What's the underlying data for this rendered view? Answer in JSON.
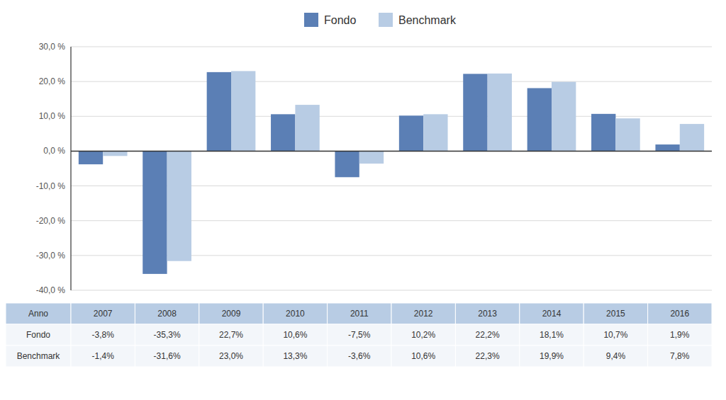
{
  "chart_data": {
    "type": "bar",
    "x_label": "Anno",
    "categories": [
      "2007",
      "2008",
      "2009",
      "2010",
      "2011",
      "2012",
      "2013",
      "2014",
      "2015",
      "2016"
    ],
    "series": [
      {
        "name": "Fondo",
        "color": "#5b7fb5",
        "values": [
          -3.8,
          -35.3,
          22.7,
          10.6,
          -7.5,
          10.2,
          22.2,
          18.1,
          10.7,
          1.9
        ],
        "value_labels": [
          "-3,8%",
          "-35,3%",
          "22,7%",
          "10,6%",
          "-7,5%",
          "10,2%",
          "22,2%",
          "18,1%",
          "10,7%",
          "1,9%"
        ]
      },
      {
        "name": "Benchmark",
        "color": "#b8cce4",
        "values": [
          -1.4,
          -31.6,
          23.0,
          13.3,
          -3.6,
          10.6,
          22.3,
          19.9,
          9.4,
          7.8
        ],
        "value_labels": [
          "-1,4%",
          "-31,6%",
          "23,0%",
          "13,3%",
          "-3,6%",
          "10,6%",
          "22,3%",
          "19,9%",
          "9,4%",
          "7,8%"
        ]
      }
    ],
    "ylim": [
      -40,
      30
    ],
    "yticks": [
      {
        "value": -40,
        "label": "-40,0 %"
      },
      {
        "value": -30,
        "label": "-30,0 %"
      },
      {
        "value": -20,
        "label": "-20,0 %"
      },
      {
        "value": -10,
        "label": "-10,0 %"
      },
      {
        "value": 0,
        "label": "0,0 %"
      },
      {
        "value": 10,
        "label": "10,0 %"
      },
      {
        "value": 20,
        "label": "20,0 %"
      },
      {
        "value": 30,
        "label": "30,0 %"
      }
    ],
    "grid": true,
    "legend": "top"
  }
}
